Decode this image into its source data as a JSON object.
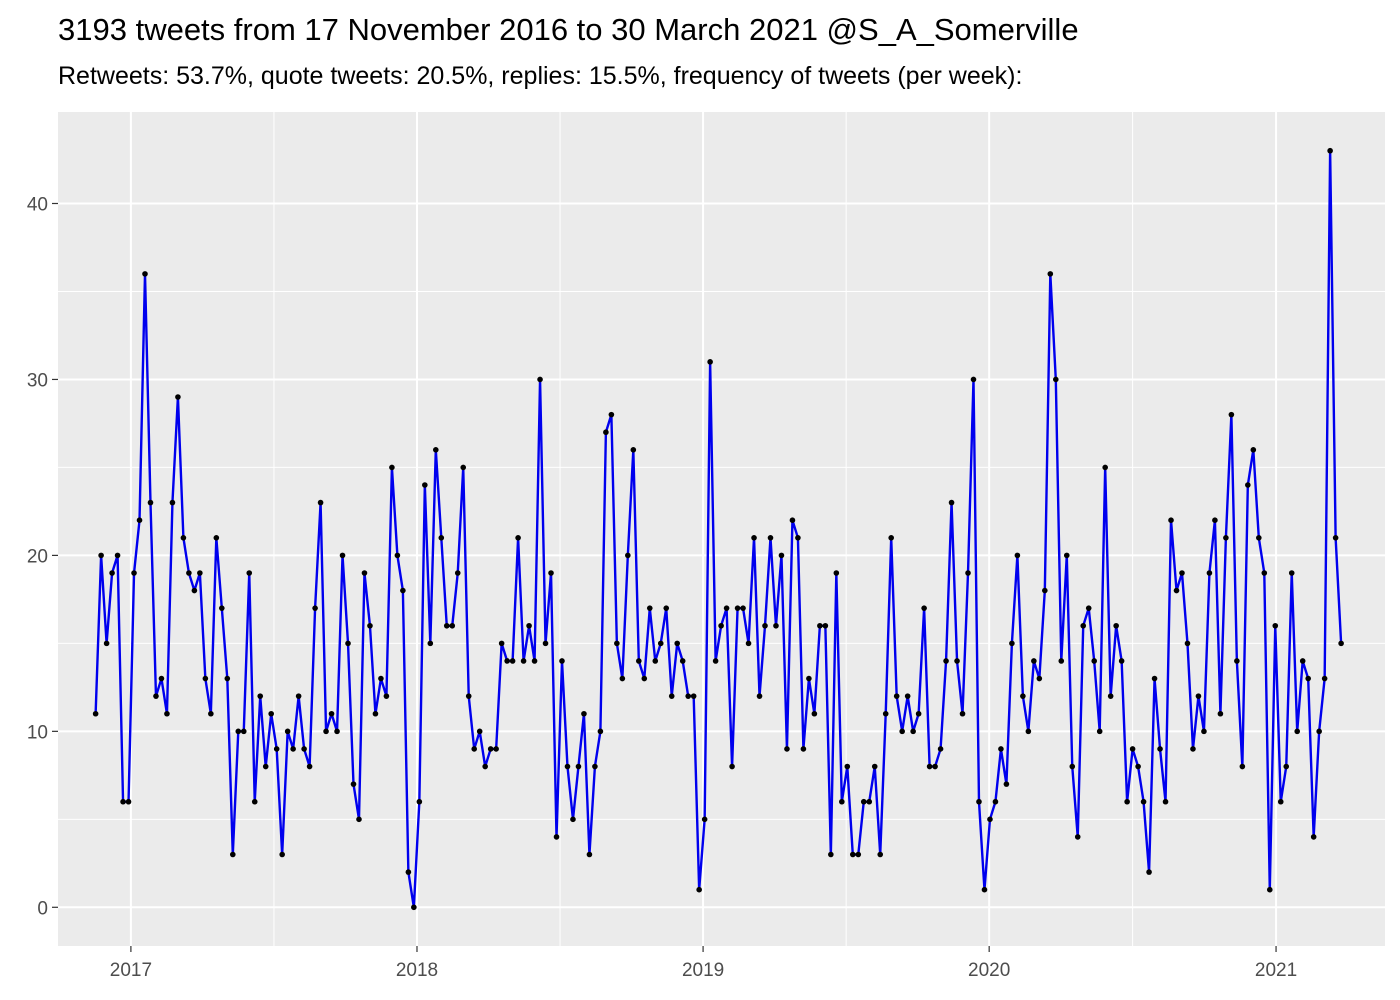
{
  "title": "3193 tweets from 17 November 2016 to 30 March 2021 @S_A_Somerville",
  "subtitle": "Retweets: 53.7%, quote tweets: 20.5%, replies: 15.5%, frequency of tweets (per week):",
  "colors": {
    "panel_background": "#ebebeb",
    "grid": "#ffffff",
    "line": "#0000ee",
    "points": "#000000",
    "tick_text": "#4d4d4d"
  },
  "chart_data": {
    "type": "line",
    "title": "3193 tweets from 17 November 2016 to 30 March 2021 @S_A_Somerville",
    "subtitle": "Retweets: 53.7%, quote tweets: 20.5%, replies: 15.5%, frequency of tweets (per week):",
    "xlabel": "",
    "ylabel": "",
    "x_type": "date",
    "xlim": [
      "2016-09-30",
      "2021-05-20"
    ],
    "ylim": [
      -2.2,
      45.2
    ],
    "grid": true,
    "x_ticks": [
      {
        "value": "2017-01-01",
        "label": "2017"
      },
      {
        "value": "2018-01-01",
        "label": "2018"
      },
      {
        "value": "2019-01-01",
        "label": "2019"
      },
      {
        "value": "2020-01-01",
        "label": "2020"
      },
      {
        "value": "2021-01-01",
        "label": "2021"
      }
    ],
    "y_ticks": [
      {
        "value": 0,
        "label": "0"
      },
      {
        "value": 10,
        "label": "10"
      },
      {
        "value": 20,
        "label": "20"
      },
      {
        "value": 30,
        "label": "30"
      },
      {
        "value": 40,
        "label": "40"
      }
    ],
    "series": [
      {
        "x": [
          "2016-11-17",
          "2016-11-24",
          "2016-12-01",
          "2016-12-08",
          "2016-12-15",
          "2016-12-22",
          "2016-12-29",
          "2017-01-05",
          "2017-01-12",
          "2017-01-19",
          "2017-01-26",
          "2017-02-02",
          "2017-02-09",
          "2017-02-16",
          "2017-02-23",
          "2017-03-02",
          "2017-03-09",
          "2017-03-16",
          "2017-03-23",
          "2017-03-30",
          "2017-04-06",
          "2017-04-13",
          "2017-04-20",
          "2017-04-27",
          "2017-05-04",
          "2017-05-11",
          "2017-05-18",
          "2017-05-25",
          "2017-06-01",
          "2017-06-08",
          "2017-06-15",
          "2017-06-22",
          "2017-06-29",
          "2017-07-06",
          "2017-07-13",
          "2017-07-20",
          "2017-07-27",
          "2017-08-03",
          "2017-08-10",
          "2017-08-17",
          "2017-08-24",
          "2017-08-31",
          "2017-09-07",
          "2017-09-14",
          "2017-09-21",
          "2017-09-28",
          "2017-10-05",
          "2017-10-12",
          "2017-10-19",
          "2017-10-26",
          "2017-11-02",
          "2017-11-09",
          "2017-11-16",
          "2017-11-23",
          "2017-11-30",
          "2017-12-07",
          "2017-12-14",
          "2017-12-21",
          "2017-12-28",
          "2018-01-04",
          "2018-01-11",
          "2018-01-18",
          "2018-01-25",
          "2018-02-01",
          "2018-02-08",
          "2018-02-15",
          "2018-02-22",
          "2018-03-01",
          "2018-03-08",
          "2018-03-15",
          "2018-03-22",
          "2018-03-29",
          "2018-04-05",
          "2018-04-12",
          "2018-04-19",
          "2018-04-26",
          "2018-05-03",
          "2018-05-10",
          "2018-05-17",
          "2018-05-24",
          "2018-05-31",
          "2018-06-07",
          "2018-06-14",
          "2018-06-21",
          "2018-06-28",
          "2018-07-05",
          "2018-07-12",
          "2018-07-19",
          "2018-07-26",
          "2018-08-02",
          "2018-08-09",
          "2018-08-16",
          "2018-08-23",
          "2018-08-30",
          "2018-09-06",
          "2018-09-13",
          "2018-09-20",
          "2018-09-27",
          "2018-10-04",
          "2018-10-11",
          "2018-10-18",
          "2018-10-25",
          "2018-11-01",
          "2018-11-08",
          "2018-11-15",
          "2018-11-22",
          "2018-11-29",
          "2018-12-06",
          "2018-12-13",
          "2018-12-20",
          "2018-12-27",
          "2019-01-03",
          "2019-01-10",
          "2019-01-17",
          "2019-01-24",
          "2019-01-31",
          "2019-02-07",
          "2019-02-14",
          "2019-02-21",
          "2019-02-28",
          "2019-03-07",
          "2019-03-14",
          "2019-03-21",
          "2019-03-28",
          "2019-04-04",
          "2019-04-11",
          "2019-04-18",
          "2019-04-25",
          "2019-05-02",
          "2019-05-09",
          "2019-05-16",
          "2019-05-23",
          "2019-05-30",
          "2019-06-06",
          "2019-06-13",
          "2019-06-20",
          "2019-06-27",
          "2019-07-04",
          "2019-07-11",
          "2019-07-18",
          "2019-07-25",
          "2019-08-01",
          "2019-08-08",
          "2019-08-15",
          "2019-08-22",
          "2019-08-29",
          "2019-09-05",
          "2019-09-12",
          "2019-09-19",
          "2019-09-26",
          "2019-10-03",
          "2019-10-10",
          "2019-10-17",
          "2019-10-24",
          "2019-10-31",
          "2019-11-07",
          "2019-11-14",
          "2019-11-21",
          "2019-11-28",
          "2019-12-05",
          "2019-12-12",
          "2019-12-19",
          "2019-12-26",
          "2020-01-02",
          "2020-01-09",
          "2020-01-16",
          "2020-01-23",
          "2020-01-30",
          "2020-02-06",
          "2020-02-13",
          "2020-02-20",
          "2020-02-27",
          "2020-03-05",
          "2020-03-12",
          "2020-03-19",
          "2020-03-26",
          "2020-04-02",
          "2020-04-09",
          "2020-04-16",
          "2020-04-23",
          "2020-04-30",
          "2020-05-07",
          "2020-05-14",
          "2020-05-21",
          "2020-05-28",
          "2020-06-04",
          "2020-06-11",
          "2020-06-18",
          "2020-06-25",
          "2020-07-02",
          "2020-07-09",
          "2020-07-16",
          "2020-07-23",
          "2020-07-30",
          "2020-08-06",
          "2020-08-13",
          "2020-08-20",
          "2020-08-27",
          "2020-09-03",
          "2020-09-10",
          "2020-09-17",
          "2020-09-24",
          "2020-10-01",
          "2020-10-08",
          "2020-10-15",
          "2020-10-22",
          "2020-10-29",
          "2020-11-05",
          "2020-11-12",
          "2020-11-19",
          "2020-11-26",
          "2020-12-03",
          "2020-12-10",
          "2020-12-17",
          "2020-12-24",
          "2020-12-31",
          "2021-01-07",
          "2021-01-14",
          "2021-01-21",
          "2021-01-28",
          "2021-02-04",
          "2021-02-11",
          "2021-02-18",
          "2021-02-25",
          "2021-03-04",
          "2021-03-11",
          "2021-03-18",
          "2021-03-25"
        ],
        "y": [
          11,
          20,
          15,
          19,
          20,
          6,
          6,
          19,
          22,
          36,
          23,
          12,
          13,
          11,
          23,
          29,
          21,
          19,
          18,
          19,
          13,
          11,
          21,
          17,
          13,
          3,
          10,
          10,
          19,
          6,
          12,
          8,
          11,
          9,
          3,
          10,
          9,
          12,
          9,
          8,
          17,
          23,
          10,
          11,
          10,
          20,
          15,
          7,
          5,
          19,
          16,
          11,
          13,
          12,
          25,
          20,
          18,
          2,
          0,
          6,
          24,
          15,
          26,
          21,
          16,
          16,
          19,
          25,
          12,
          9,
          10,
          8,
          9,
          9,
          15,
          14,
          14,
          21,
          14,
          16,
          14,
          30,
          15,
          19,
          4,
          14,
          8,
          5,
          8,
          11,
          3,
          8,
          10,
          27,
          28,
          15,
          13,
          20,
          26,
          14,
          13,
          17,
          14,
          15,
          17,
          12,
          15,
          14,
          12,
          12,
          1,
          5,
          31,
          14,
          16,
          17,
          8,
          17,
          17,
          15,
          21,
          12,
          16,
          21,
          16,
          20,
          9,
          22,
          21,
          9,
          13,
          11,
          16,
          16,
          3,
          19,
          6,
          8,
          3,
          3,
          6,
          6,
          8,
          3,
          11,
          21,
          12,
          10,
          12,
          10,
          11,
          17,
          8,
          8,
          9,
          14,
          23,
          14,
          11,
          19,
          30,
          6,
          1,
          5,
          6,
          9,
          7,
          15,
          20,
          12,
          10,
          14,
          13,
          18,
          36,
          30,
          14,
          20,
          8,
          4,
          16,
          17,
          14,
          10,
          25,
          12,
          16,
          14,
          6,
          9,
          8,
          6,
          2,
          13,
          9,
          6,
          22,
          18,
          19,
          15,
          9,
          12,
          10,
          19,
          22,
          11,
          21,
          28,
          14,
          8,
          24,
          26,
          21,
          19,
          1,
          16,
          6,
          8,
          19,
          10,
          14,
          13,
          4,
          10,
          13,
          43,
          21,
          15
        ]
      }
    ]
  }
}
